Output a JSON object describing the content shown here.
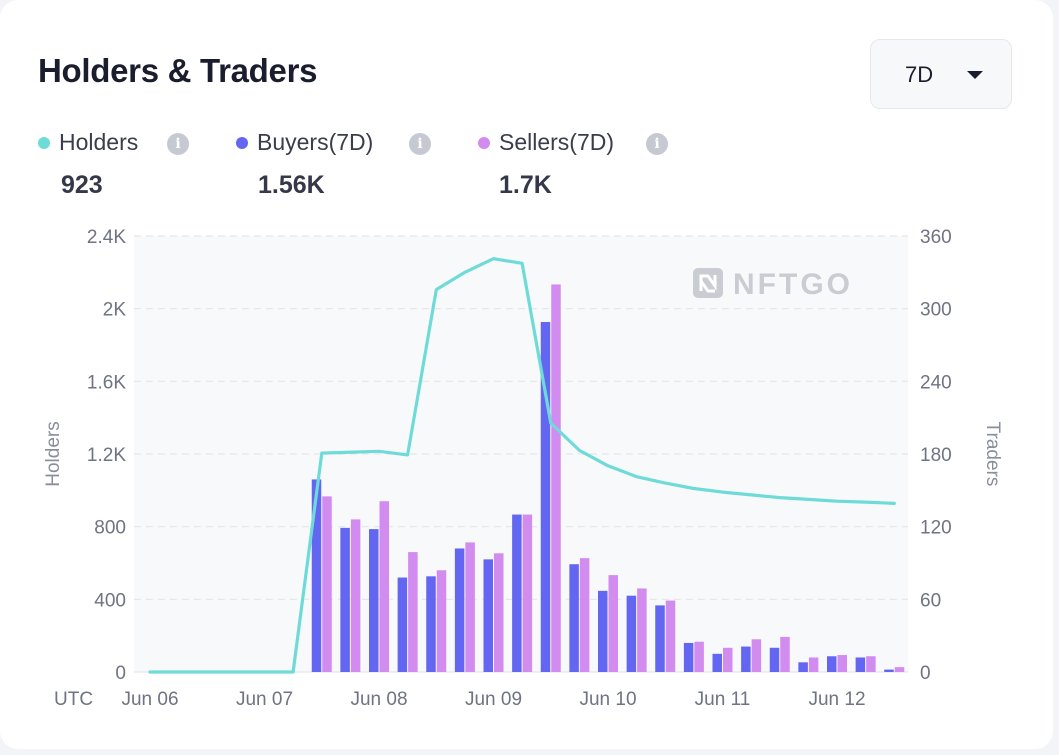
{
  "title": "Holders & Traders",
  "range_selector": {
    "value": "7D"
  },
  "legend": [
    {
      "key": "holders",
      "label": "Holders",
      "value": "923",
      "color": "#6fdbd8"
    },
    {
      "key": "buyers",
      "label": "Buyers(7D)",
      "value": "1.56K",
      "color": "#6266f0"
    },
    {
      "key": "sellers",
      "label": "Sellers(7D)",
      "value": "1.7K",
      "color": "#d28bef"
    }
  ],
  "watermark": "NFTGO",
  "chart_data": {
    "type": "bar+line",
    "timezone_label": "UTC",
    "x_tick_labels": [
      "Jun 06",
      "Jun 07",
      "Jun 08",
      "Jun 09",
      "Jun 10",
      "Jun 11",
      "Jun 12"
    ],
    "left_axis": {
      "label": "Holders",
      "range": [
        0,
        2400
      ],
      "tick_labels": [
        "0",
        "400",
        "800",
        "1.2K",
        "1.6K",
        "2K",
        "2.4K"
      ]
    },
    "right_axis": {
      "label": "Traders",
      "range": [
        0,
        360
      ],
      "tick_labels": [
        "0",
        "60",
        "120",
        "180",
        "240",
        "300",
        "360"
      ]
    },
    "grid": true,
    "watermark_position": "top-right",
    "bar_periods_days": [
      1.5,
      1.75,
      2.0,
      2.25,
      2.5,
      2.75,
      3.0,
      3.25,
      3.5,
      3.75,
      4.0,
      4.25,
      4.5,
      4.75,
      5.0,
      5.25,
      5.5,
      5.75,
      6.0,
      6.25,
      6.5
    ],
    "series": [
      {
        "name": "Holders",
        "type": "line",
        "axis": "left",
        "color": "#6fdbd8",
        "points": [
          [
            0.0,
            0
          ],
          [
            1.25,
            0
          ],
          [
            1.5,
            1205
          ],
          [
            2.0,
            1215
          ],
          [
            2.25,
            1195
          ],
          [
            2.5,
            2105
          ],
          [
            2.75,
            2200
          ],
          [
            3.0,
            2275
          ],
          [
            3.25,
            2250
          ],
          [
            3.5,
            1370
          ],
          [
            3.75,
            1220
          ],
          [
            4.0,
            1135
          ],
          [
            4.25,
            1075
          ],
          [
            4.5,
            1040
          ],
          [
            4.75,
            1010
          ],
          [
            5.0,
            990
          ],
          [
            5.25,
            975
          ],
          [
            5.5,
            960
          ],
          [
            5.75,
            950
          ],
          [
            6.0,
            940
          ],
          [
            6.25,
            935
          ],
          [
            6.5,
            928
          ]
        ]
      },
      {
        "name": "Buyers(7D)",
        "type": "bar",
        "axis": "right",
        "color": "#6266f0",
        "values": [
          159,
          119,
          118,
          78,
          79,
          102,
          93,
          130,
          289,
          89,
          67,
          63,
          55,
          24,
          15,
          21,
          20,
          8,
          13,
          12,
          2
        ]
      },
      {
        "name": "Sellers(7D)",
        "type": "bar",
        "axis": "right",
        "color": "#d28bef",
        "values": [
          145,
          126,
          141,
          99,
          84,
          107,
          98,
          130,
          320,
          94,
          80,
          69,
          59,
          25,
          20,
          27,
          29,
          12,
          14,
          13,
          4
        ]
      }
    ]
  }
}
